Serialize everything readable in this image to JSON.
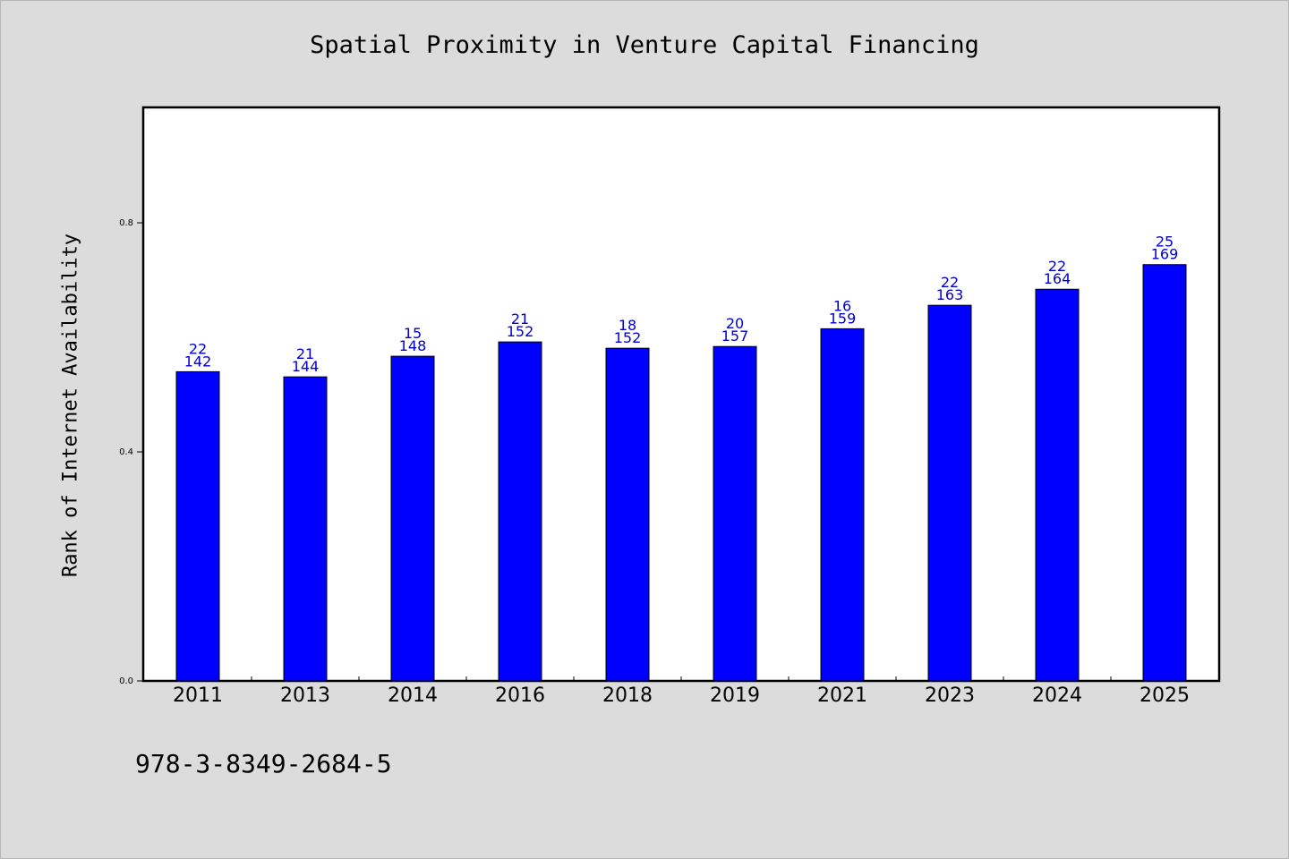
{
  "chart_data": {
    "type": "bar",
    "title": "Spatial Proximity in Venture Capital Financing",
    "ylabel": "Rank of Internet Availability",
    "xlabel": "",
    "categories": [
      "2011",
      "2013",
      "2014",
      "2016",
      "2018",
      "2019",
      "2021",
      "2023",
      "2024",
      "2025"
    ],
    "values": [
      0.54,
      0.531,
      0.567,
      0.592,
      0.581,
      0.584,
      0.615,
      0.656,
      0.684,
      0.727
    ],
    "labels_top": [
      "22",
      "21",
      "15",
      "21",
      "18",
      "20",
      "16",
      "22",
      "22",
      "25"
    ],
    "labels_bottom": [
      "142",
      "144",
      "148",
      "152",
      "152",
      "157",
      "159",
      "163",
      "164",
      "169"
    ],
    "ylim": [
      0.0,
      1.0
    ],
    "yticks": [
      "0.0",
      "0.4",
      "0.8"
    ],
    "bar_color": "#0000ff",
    "label_color": "#0000cc",
    "grid": false,
    "legend": "none"
  },
  "footer": {
    "isbn": "978-3-8349-2684-5"
  }
}
